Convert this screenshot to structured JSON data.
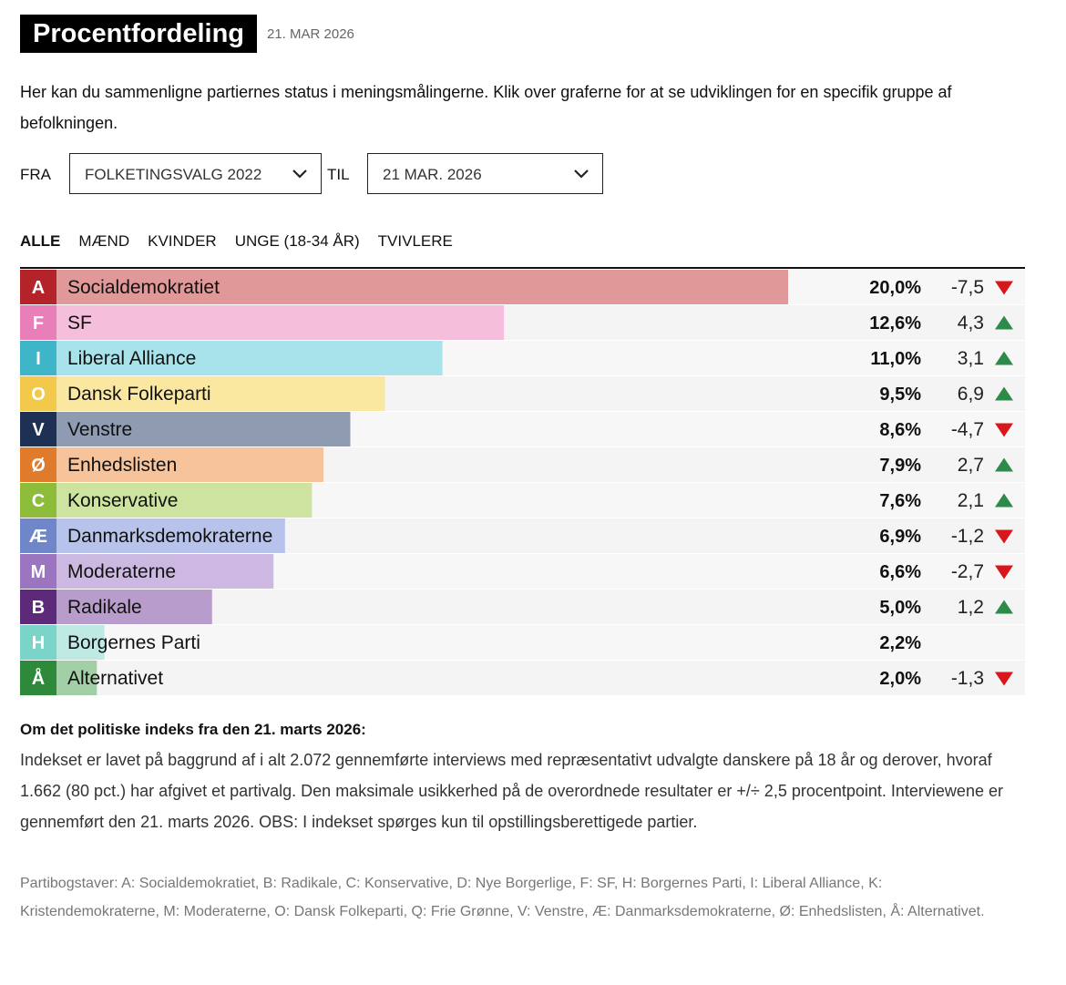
{
  "header": {
    "title": "Procentfordeling",
    "date": "21. MAR 2026"
  },
  "intro": "Her kan du sammenligne partiernes status i meningsmålingerne. Klik over graferne for at se udviklingen for en specifik gruppe af befolkningen.",
  "filters": {
    "from_label": "FRA",
    "from_value": "FOLKETINGSVALG 2022",
    "to_label": "TIL",
    "to_value": "21 MAR. 2026"
  },
  "tabs": [
    "ALLE",
    "MÆND",
    "KVINDER",
    "UNGE (18-34 ÅR)",
    "TVIVLERE"
  ],
  "chart_data": {
    "type": "bar",
    "orientation": "horizontal",
    "letters": [
      "A",
      "F",
      "I",
      "O",
      "V",
      "Ø",
      "C",
      "Æ",
      "M",
      "B",
      "H",
      "Å"
    ],
    "categories": [
      "Socialdemokratiet",
      "SF",
      "Liberal Alliance",
      "Dansk Folkeparti",
      "Venstre",
      "Enhedslisten",
      "Konservative",
      "Danmarksdemokraterne",
      "Moderaterne",
      "Radikale",
      "Borgernes Parti",
      "Alternativet"
    ],
    "values": [
      20.0,
      12.6,
      11.0,
      9.5,
      8.6,
      7.9,
      7.6,
      6.9,
      6.6,
      5.0,
      2.2,
      2.0
    ],
    "value_labels": [
      "20,0%",
      "12,6%",
      "11,0%",
      "9,5%",
      "8,6%",
      "7,9%",
      "7,6%",
      "6,9%",
      "6,6%",
      "5,0%",
      "2,2%",
      "2,0%"
    ],
    "changes": [
      -7.5,
      4.3,
      3.1,
      6.9,
      -4.7,
      2.7,
      2.1,
      -1.2,
      -2.7,
      1.2,
      null,
      -1.3
    ],
    "change_labels": [
      "-7,5",
      "4,3",
      "3,1",
      "6,9",
      "-4,7",
      "2,7",
      "2,1",
      "-1,2",
      "-2,7",
      "1,2",
      null,
      "-1,3"
    ],
    "colors": [
      "#b5232a",
      "#e97fb9",
      "#3fb6c8",
      "#f2c94a",
      "#1e3053",
      "#e07b2c",
      "#8dbb3a",
      "#6f87c9",
      "#9b75c0",
      "#5d2a7a",
      "#7ad5c8",
      "#2e8a3a"
    ],
    "bar_colors": [
      "#e09898",
      "#f5bfdc",
      "#a8e2ea",
      "#fae7a0",
      "#8f9bb0",
      "#f6c39a",
      "#cfe3a0",
      "#b7c3ea",
      "#ccb8e0",
      "#b89ccc",
      "#bfeae4",
      "#a3cfa6"
    ]
  },
  "footnote": {
    "title": "Om det politiske indeks fra den 21. marts 2026:",
    "body": "Indekset er lavet på baggrund af i alt 2.072 gennemførte interviews med repræsentativt udvalgte danskere på 18 år og derover, hvoraf 1.662 (80 pct.) har afgivet et partivalg. Den maksimale usikkerhed på de overordnede resultater er +/÷ 2,5 procentpoint. Interviewene er gennemført den 21. marts 2026. OBS: I indekset spørges kun til opstillingsberettigede partier.",
    "letters": "Partibogstaver: A: Socialdemokratiet, B: Radikale, C: Konservative, D: Nye Borgerlige, F: SF, H: Borgernes Parti, I: Liberal Alliance, K: Kristendemokraterne, M: Moderaterne, O: Dansk Folkeparti, Q: Frie Grønne, V: Venstre, Æ: Danmarksdemokraterne, Ø: Enhedslisten, Å: Alternativet."
  }
}
